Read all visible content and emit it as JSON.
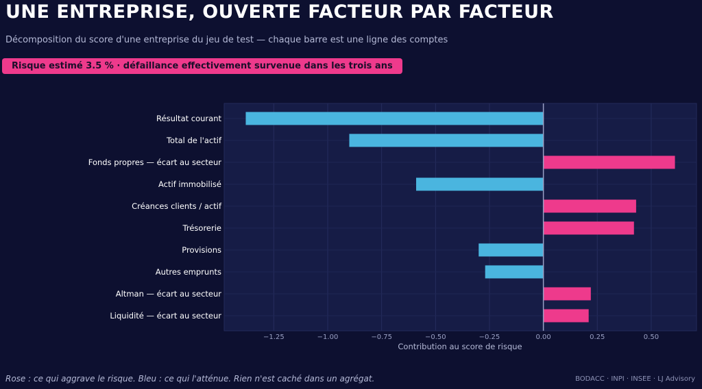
{
  "header": {
    "title": "UNE ENTREPRISE, OUVERTE FACTEUR PAR FACTEUR",
    "subtitle": "Décomposition du score d'une entreprise du jeu de test — chaque barre est une ligne des comptes",
    "badge": "Risque estimé 3.5 %  ·  défaillance effectivement survenue dans les trois ans"
  },
  "footer": {
    "note": "Rose : ce qui aggrave le risque. Bleu : ce qui l'atténue. Rien n'est caché dans un agrégat.",
    "sources": "BODACC · INPI · INSEE · LJ Advisory"
  },
  "colors": {
    "positive": "#ee3a8c",
    "negative": "#4ab5df",
    "background": "#0d1030",
    "plot_background": "#161c46"
  },
  "chart_data": {
    "type": "bar",
    "orientation": "horizontal",
    "categories": [
      "Résultat courant",
      "Total de l'actif",
      "Fonds propres — écart au secteur",
      "Actif immobilisé",
      "Créances clients / actif",
      "Trésorerie",
      "Provisions",
      "Autres emprunts",
      "Altman — écart au secteur",
      "Liquidité — écart au secteur"
    ],
    "values": [
      -1.38,
      -0.9,
      0.61,
      -0.59,
      0.43,
      0.42,
      -0.3,
      -0.27,
      0.22,
      0.21
    ],
    "xlabel": "Contribution au score de risque",
    "ylabel": "",
    "xlim": [
      -1.48,
      0.71
    ],
    "xticks": [
      -1.25,
      -1.0,
      -0.75,
      -0.5,
      -0.25,
      0.0,
      0.25,
      0.5
    ],
    "xtick_labels": [
      "−1.25",
      "−1.00",
      "−0.75",
      "−0.50",
      "−0.25",
      "0.00",
      "0.25",
      "0.50"
    ],
    "grid": true,
    "legend": "none"
  }
}
